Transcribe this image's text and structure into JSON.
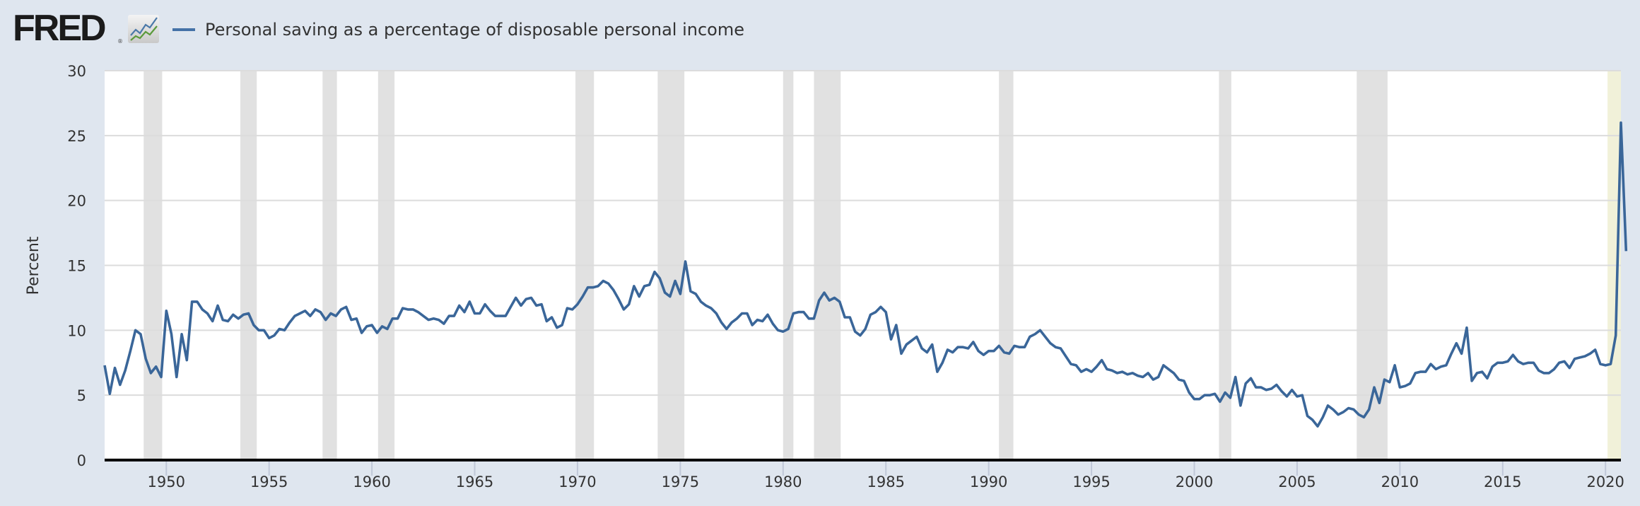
{
  "header": {
    "logo_text": "FRED",
    "logo_reg": "®",
    "logo_icon": "fred-chart-icon",
    "legend_label": "Personal saving as a percentage of disposable personal income",
    "legend_color": "#4572a7"
  },
  "colors": {
    "line": "#3a6699",
    "recession": "#e1e1e1",
    "current_recession": "#f1f1d9",
    "grid": "#dcdcdc",
    "plot_bg": "#ffffff",
    "page_bg": "#dfe6ef",
    "axis": "#000000"
  },
  "chart_data": {
    "type": "line",
    "title": "Personal saving as a percentage of disposable personal income",
    "xlabel": "",
    "ylabel": "Percent",
    "ylim": [
      0,
      30
    ],
    "yticks": [
      0,
      5,
      10,
      15,
      20,
      25,
      30
    ],
    "xlim": [
      1947.0,
      2020.75
    ],
    "xticks": [
      1950,
      1955,
      1960,
      1965,
      1970,
      1975,
      1980,
      1985,
      1990,
      1995,
      2000,
      2005,
      2010,
      2015,
      2020
    ],
    "grid": true,
    "legend_position": "top-left",
    "frequency": "quarterly",
    "recessions": [
      [
        1948.9,
        1949.8
      ],
      [
        1953.6,
        1954.4
      ],
      [
        1957.6,
        1958.3
      ],
      [
        1960.3,
        1961.1
      ],
      [
        1969.9,
        1970.8
      ],
      [
        1973.9,
        1975.2
      ],
      [
        1980.0,
        1980.5
      ],
      [
        1981.5,
        1982.8
      ],
      [
        1990.5,
        1991.2
      ],
      [
        2001.2,
        2001.8
      ],
      [
        2007.9,
        2009.4
      ]
    ],
    "current_recession": [
      2020.1,
      2020.75
    ],
    "series": [
      {
        "name": "Personal saving as a percentage of disposable personal income",
        "start": 1947.0,
        "step": 0.25,
        "values": [
          7.3,
          5.1,
          7.1,
          5.8,
          6.9,
          8.4,
          10.0,
          9.7,
          7.8,
          6.7,
          7.2,
          6.4,
          11.5,
          9.7,
          6.4,
          9.7,
          7.7,
          12.2,
          12.2,
          11.6,
          11.3,
          10.7,
          11.9,
          10.8,
          10.7,
          11.2,
          10.9,
          11.2,
          11.3,
          10.4,
          10.0,
          10.0,
          9.4,
          9.6,
          10.1,
          10.0,
          10.6,
          11.1,
          11.3,
          11.5,
          11.1,
          11.6,
          11.4,
          10.8,
          11.3,
          11.1,
          11.6,
          11.8,
          10.8,
          10.9,
          9.8,
          10.3,
          10.4,
          9.8,
          10.3,
          10.1,
          10.9,
          10.9,
          11.7,
          11.6,
          11.6,
          11.4,
          11.1,
          10.8,
          10.9,
          10.8,
          10.5,
          11.1,
          11.1,
          11.9,
          11.4,
          12.2,
          11.3,
          11.3,
          12.0,
          11.5,
          11.1,
          11.1,
          11.1,
          11.8,
          12.5,
          11.9,
          12.4,
          12.5,
          11.9,
          12.0,
          10.7,
          11.0,
          10.2,
          10.4,
          11.7,
          11.6,
          12.0,
          12.6,
          13.3,
          13.3,
          13.4,
          13.8,
          13.6,
          13.1,
          12.4,
          11.6,
          12.0,
          13.4,
          12.6,
          13.4,
          13.5,
          14.5,
          14.0,
          12.9,
          12.6,
          13.8,
          12.8,
          15.3,
          13.0,
          12.8,
          12.2,
          11.9,
          11.7,
          11.3,
          10.6,
          10.1,
          10.6,
          10.9,
          11.3,
          11.3,
          10.4,
          10.8,
          10.7,
          11.2,
          10.5,
          10.0,
          9.9,
          10.1,
          11.3,
          11.4,
          11.4,
          10.9,
          10.9,
          12.3,
          12.9,
          12.3,
          12.5,
          12.2,
          11.0,
          11.0,
          9.9,
          9.6,
          10.1,
          11.2,
          11.4,
          11.8,
          11.4,
          9.3,
          10.4,
          8.2,
          8.9,
          9.2,
          9.5,
          8.6,
          8.3,
          8.9,
          6.8,
          7.5,
          8.5,
          8.3,
          8.7,
          8.7,
          8.6,
          9.1,
          8.4,
          8.1,
          8.4,
          8.4,
          8.8,
          8.3,
          8.2,
          8.8,
          8.7,
          8.7,
          9.5,
          9.7,
          10.0,
          9.5,
          9.0,
          8.7,
          8.6,
          8.0,
          7.4,
          7.3,
          6.8,
          7.0,
          6.8,
          7.2,
          7.7,
          7.0,
          6.9,
          6.7,
          6.8,
          6.6,
          6.7,
          6.5,
          6.4,
          6.7,
          6.2,
          6.4,
          7.3,
          7.0,
          6.7,
          6.2,
          6.1,
          5.2,
          4.7,
          4.7,
          5.0,
          5.0,
          5.1,
          4.5,
          5.2,
          4.8,
          6.4,
          4.2,
          5.9,
          6.3,
          5.6,
          5.6,
          5.4,
          5.5,
          5.8,
          5.3,
          4.9,
          5.4,
          4.9,
          5.0,
          3.4,
          3.1,
          2.6,
          3.3,
          4.2,
          3.9,
          3.5,
          3.7,
          4.0,
          3.9,
          3.5,
          3.3,
          3.9,
          5.6,
          4.4,
          6.2,
          6.0,
          7.3,
          5.6,
          5.7,
          5.9,
          6.7,
          6.8,
          6.8,
          7.4,
          7.0,
          7.2,
          7.3,
          8.2,
          9.0,
          8.2,
          10.2,
          6.1,
          6.7,
          6.8,
          6.3,
          7.2,
          7.5,
          7.5,
          7.6,
          8.1,
          7.6,
          7.4,
          7.5,
          7.5,
          6.9,
          6.7,
          6.7,
          7.0,
          7.5,
          7.6,
          7.1,
          7.8,
          7.9,
          8.0,
          8.2,
          8.5,
          7.4,
          7.3,
          7.4,
          9.6,
          26.0,
          16.1
        ]
      }
    ]
  }
}
